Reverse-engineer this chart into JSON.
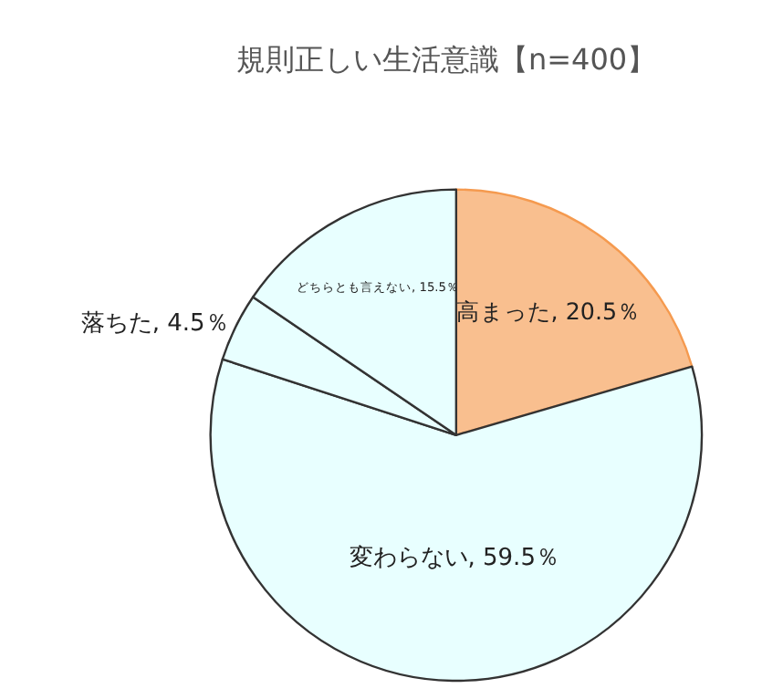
{
  "chart_data": {
    "type": "pie",
    "title": "規則正しい生活意識【n=400】",
    "categories": [
      "高まった",
      "変わらない",
      "落ちた",
      "どちらとも言えない"
    ],
    "values": [
      20.5,
      59.5,
      4.5,
      15.5
    ],
    "colors": [
      "#f9bf8f",
      "#e8ffff",
      "#e8ffff",
      "#e8ffff"
    ],
    "value_labels": [
      "20.5％",
      "59.5％",
      "4.5％",
      "15.5％"
    ],
    "legend": false
  }
}
